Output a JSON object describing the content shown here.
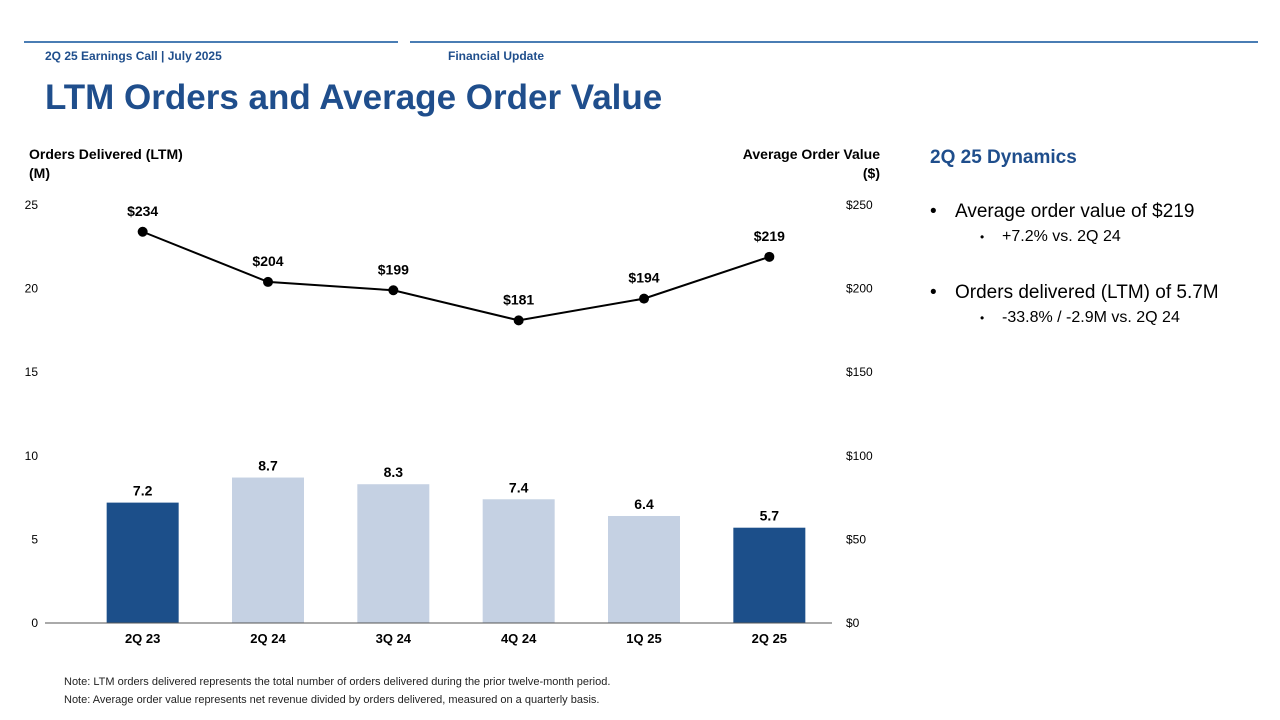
{
  "header": {
    "left": "2Q 25 Earnings Call | July 2025",
    "right": "Financial Update"
  },
  "page_title": "LTM Orders and Average Order Value",
  "sidebar": {
    "title": "2Q 25 Dynamics",
    "bullets": [
      {
        "text": "Average order value of $219",
        "sub": "+7.2% vs. 2Q 24"
      },
      {
        "text": "Orders delivered (LTM) of 5.7M",
        "sub": "-33.8% / -2.9M vs. 2Q 24"
      }
    ]
  },
  "notes": [
    "Note: LTM orders delivered represents the total number of orders delivered during the prior twelve-month period.",
    "Note: Average order value represents net revenue divided by orders delivered, measured on a quarterly basis."
  ],
  "colors": {
    "brand": "#1f4e8c",
    "bar_dark": "#1c4f8a",
    "bar_light": "#c5d1e3",
    "rule": "#4a7db4"
  },
  "chart_data": {
    "type": "bar+line",
    "categories": [
      "2Q 23",
      "2Q 24",
      "3Q 24",
      "4Q 24",
      "1Q 25",
      "2Q 25"
    ],
    "y_left": {
      "label_line1": "Orders Delivered (LTM)",
      "label_line2": "(M)",
      "range": [
        0,
        25
      ],
      "ticks": [
        "0",
        "5",
        "10",
        "15",
        "20",
        "25"
      ]
    },
    "y_right": {
      "label_line1": "Average Order Value",
      "label_line2": "($)",
      "range": [
        0,
        250
      ],
      "ticks": [
        "$0",
        "$50",
        "$100",
        "$150",
        "$200",
        "$250"
      ]
    },
    "bars": {
      "name": "Orders Delivered (LTM)",
      "values": [
        7.2,
        8.7,
        8.3,
        7.4,
        6.4,
        5.7
      ],
      "labels": [
        "7.2",
        "8.7",
        "8.3",
        "7.4",
        "6.4",
        "5.7"
      ],
      "highlight": [
        true,
        false,
        false,
        false,
        false,
        true
      ]
    },
    "line": {
      "name": "Average Order Value",
      "values": [
        234,
        204,
        199,
        181,
        194,
        219
      ],
      "labels": [
        "$234",
        "$204",
        "$199",
        "$181",
        "$194",
        "$219"
      ]
    },
    "grid": false
  }
}
